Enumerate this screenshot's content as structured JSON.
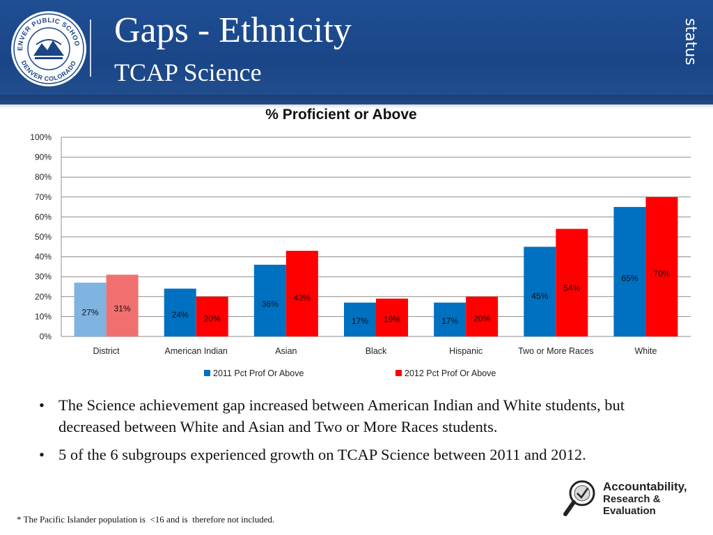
{
  "header": {
    "title": "Gaps - Ethnicity",
    "subtitle": "TCAP Science",
    "side_tag": "status",
    "logo_text_top": "DENVER PUBLIC SCHOOLS",
    "logo_text_bottom": "DENVER COLORADO"
  },
  "chart_data": {
    "type": "bar",
    "title": "% Proficient or Above",
    "categories": [
      "District",
      "American Indian",
      "Asian",
      "Black",
      "Hispanic",
      "Two or More Races",
      "White"
    ],
    "series": [
      {
        "name": "2011 Pct Prof Or Above",
        "values": [
          27,
          24,
          36,
          17,
          17,
          45,
          65
        ],
        "labels": [
          "27%",
          "24%",
          "36%",
          "17%",
          "17%",
          "45%",
          "65%"
        ],
        "color": "#0070c0",
        "district_color": "#7fb3e0"
      },
      {
        "name": "2012 Pct Prof Or Above",
        "values": [
          31,
          20,
          43,
          19,
          20,
          54,
          70
        ],
        "labels": [
          "31%",
          "20%",
          "43%",
          "19%",
          "20%",
          "54%",
          "70%"
        ],
        "color": "#ff0000",
        "district_color": "#f07070"
      }
    ],
    "ylim": [
      0,
      100
    ],
    "yticks": [
      "0%",
      "10%",
      "20%",
      "30%",
      "40%",
      "50%",
      "60%",
      "70%",
      "80%",
      "90%",
      "100%"
    ],
    "grid": true,
    "legend_position": "bottom"
  },
  "bullets": [
    "The Science achievement gap increased between American Indian and White students, but decreased between White and Asian and Two or More Races students.",
    "5 of the 6 subgroups experienced growth on TCAP Science between 2011 and 2012."
  ],
  "bullet_symbol": "•",
  "footnote": "* The Pacific Islander population is  <16 and is  therefore not included.",
  "footer_logo": {
    "line1": "Accountability,",
    "line2": "Research &",
    "line3": "Evaluation"
  }
}
